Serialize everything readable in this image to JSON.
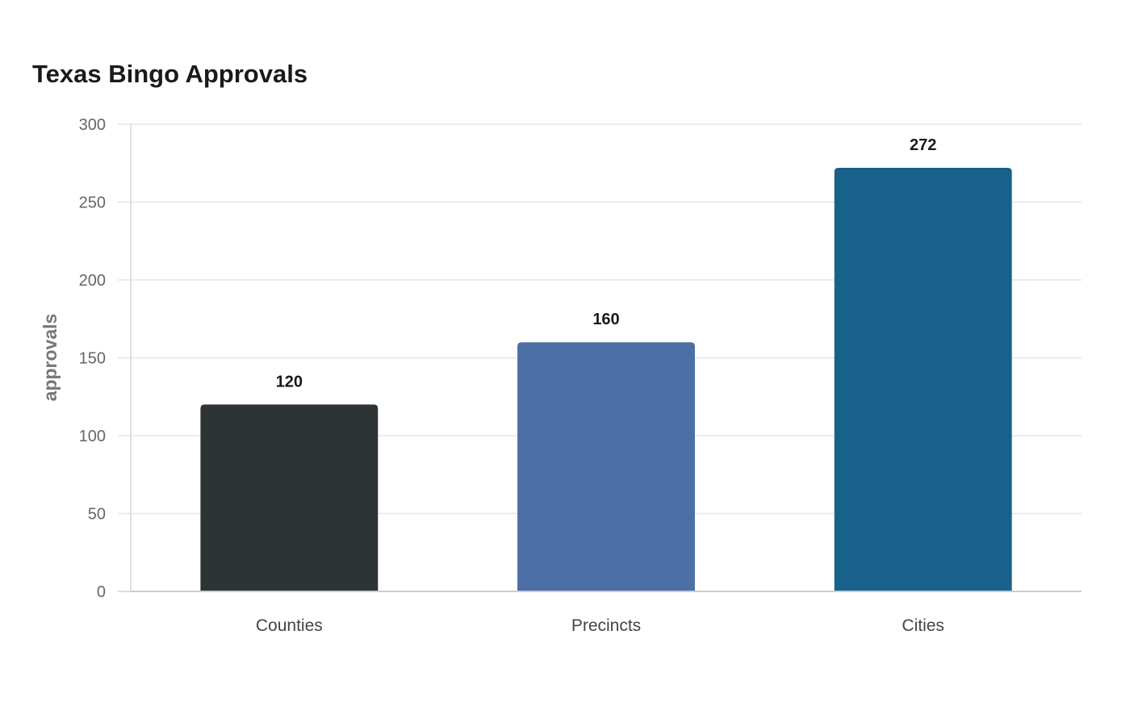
{
  "chart_data": {
    "type": "bar",
    "title": "Texas Bingo Approvals",
    "xlabel": "",
    "ylabel": "approvals",
    "categories": [
      "Counties",
      "Precincts",
      "Cities"
    ],
    "values": [
      120,
      160,
      272
    ],
    "data_labels": [
      "120",
      "160",
      "272"
    ],
    "colors": [
      "#2e3436",
      "#4c6fa5",
      "#18618a"
    ],
    "ylim": [
      0,
      300
    ],
    "yticks": [
      0,
      50,
      100,
      150,
      200,
      250,
      300
    ],
    "grid": true,
    "legend": "none"
  }
}
